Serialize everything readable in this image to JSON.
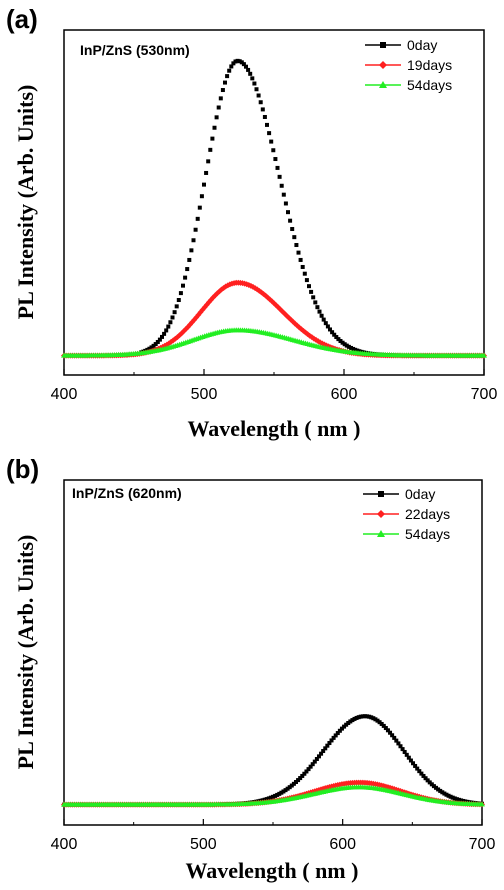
{
  "chart_data": [
    {
      "type": "line",
      "panel_label": "(a)",
      "annotation": "InP/ZnS (530nm)",
      "xlabel": "Wavelength ( nm )",
      "ylabel": "PL Intensity (Arb. Units)",
      "xlim": [
        400,
        700
      ],
      "ylim": [
        0,
        1.0
      ],
      "xticks": [
        400,
        500,
        600,
        700
      ],
      "yticks": [],
      "legend_position": "top-right",
      "series": [
        {
          "name": "0day",
          "color": "#000000",
          "marker": "square",
          "peak_x": 524,
          "peak_y": 0.95,
          "width_left": 23,
          "width_right": 30,
          "baseline": 0.02,
          "x_start": 455
        },
        {
          "name": "19days",
          "color": "#ff2020",
          "marker": "diamond",
          "peak_x": 524,
          "peak_y": 0.25,
          "width_left": 26,
          "width_right": 32,
          "baseline": 0.02,
          "x_start": 400
        },
        {
          "name": "54days",
          "color": "#22ee22",
          "marker": "triangle",
          "peak_x": 524,
          "peak_y": 0.1,
          "width_left": 32,
          "width_right": 40,
          "baseline": 0.02,
          "x_start": 400
        }
      ]
    },
    {
      "type": "line",
      "panel_label": "(b)",
      "annotation": "InP/ZnS (620nm)",
      "xlabel": "Wavelength ( nm )",
      "ylabel": "PL Intensity (Arb. Units)",
      "xlim": [
        400,
        700
      ],
      "ylim": [
        0,
        1.0
      ],
      "xticks": [
        400,
        500,
        600,
        700
      ],
      "yticks": [],
      "legend_position": "top-right",
      "series": [
        {
          "name": "0day",
          "color": "#000000",
          "marker": "square",
          "peak_x": 616,
          "peak_y": 0.3,
          "width_left": 30,
          "width_right": 28,
          "baseline": 0.02,
          "x_start": 400
        },
        {
          "name": "22days",
          "color": "#ff2020",
          "marker": "diamond",
          "peak_x": 612,
          "peak_y": 0.09,
          "width_left": 32,
          "width_right": 30,
          "baseline": 0.02,
          "x_start": 400
        },
        {
          "name": "54days",
          "color": "#22ee22",
          "marker": "triangle",
          "peak_x": 612,
          "peak_y": 0.075,
          "width_left": 33,
          "width_right": 31,
          "baseline": 0.02,
          "x_start": 400
        }
      ]
    }
  ]
}
